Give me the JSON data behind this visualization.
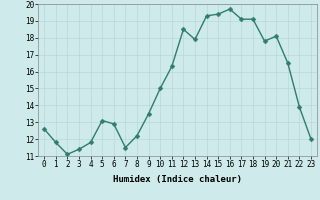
{
  "x": [
    0,
    1,
    2,
    3,
    4,
    5,
    6,
    7,
    8,
    9,
    10,
    11,
    12,
    13,
    14,
    15,
    16,
    17,
    18,
    19,
    20,
    21,
    22,
    23
  ],
  "y": [
    12.6,
    11.8,
    11.1,
    11.4,
    11.8,
    13.1,
    12.9,
    11.5,
    12.2,
    13.5,
    15.0,
    16.3,
    18.5,
    17.9,
    19.3,
    19.4,
    19.7,
    19.1,
    19.1,
    17.8,
    18.1,
    16.5,
    13.9,
    12.0
  ],
  "line_color": "#2e7d6e",
  "marker_color": "#2e7d6e",
  "bg_color": "#ceeaea",
  "grid_color": "#b8d8d8",
  "xlabel": "Humidex (Indice chaleur)",
  "ylim": [
    11,
    20
  ],
  "xlim": [
    -0.5,
    23.5
  ],
  "yticks": [
    11,
    12,
    13,
    14,
    15,
    16,
    17,
    18,
    19,
    20
  ],
  "xticks": [
    0,
    1,
    2,
    3,
    4,
    5,
    6,
    7,
    8,
    9,
    10,
    11,
    12,
    13,
    14,
    15,
    16,
    17,
    18,
    19,
    20,
    21,
    22,
    23
  ],
  "xlabel_fontsize": 6.5,
  "tick_fontsize": 5.5,
  "line_width": 1.0,
  "marker_size": 2.5
}
